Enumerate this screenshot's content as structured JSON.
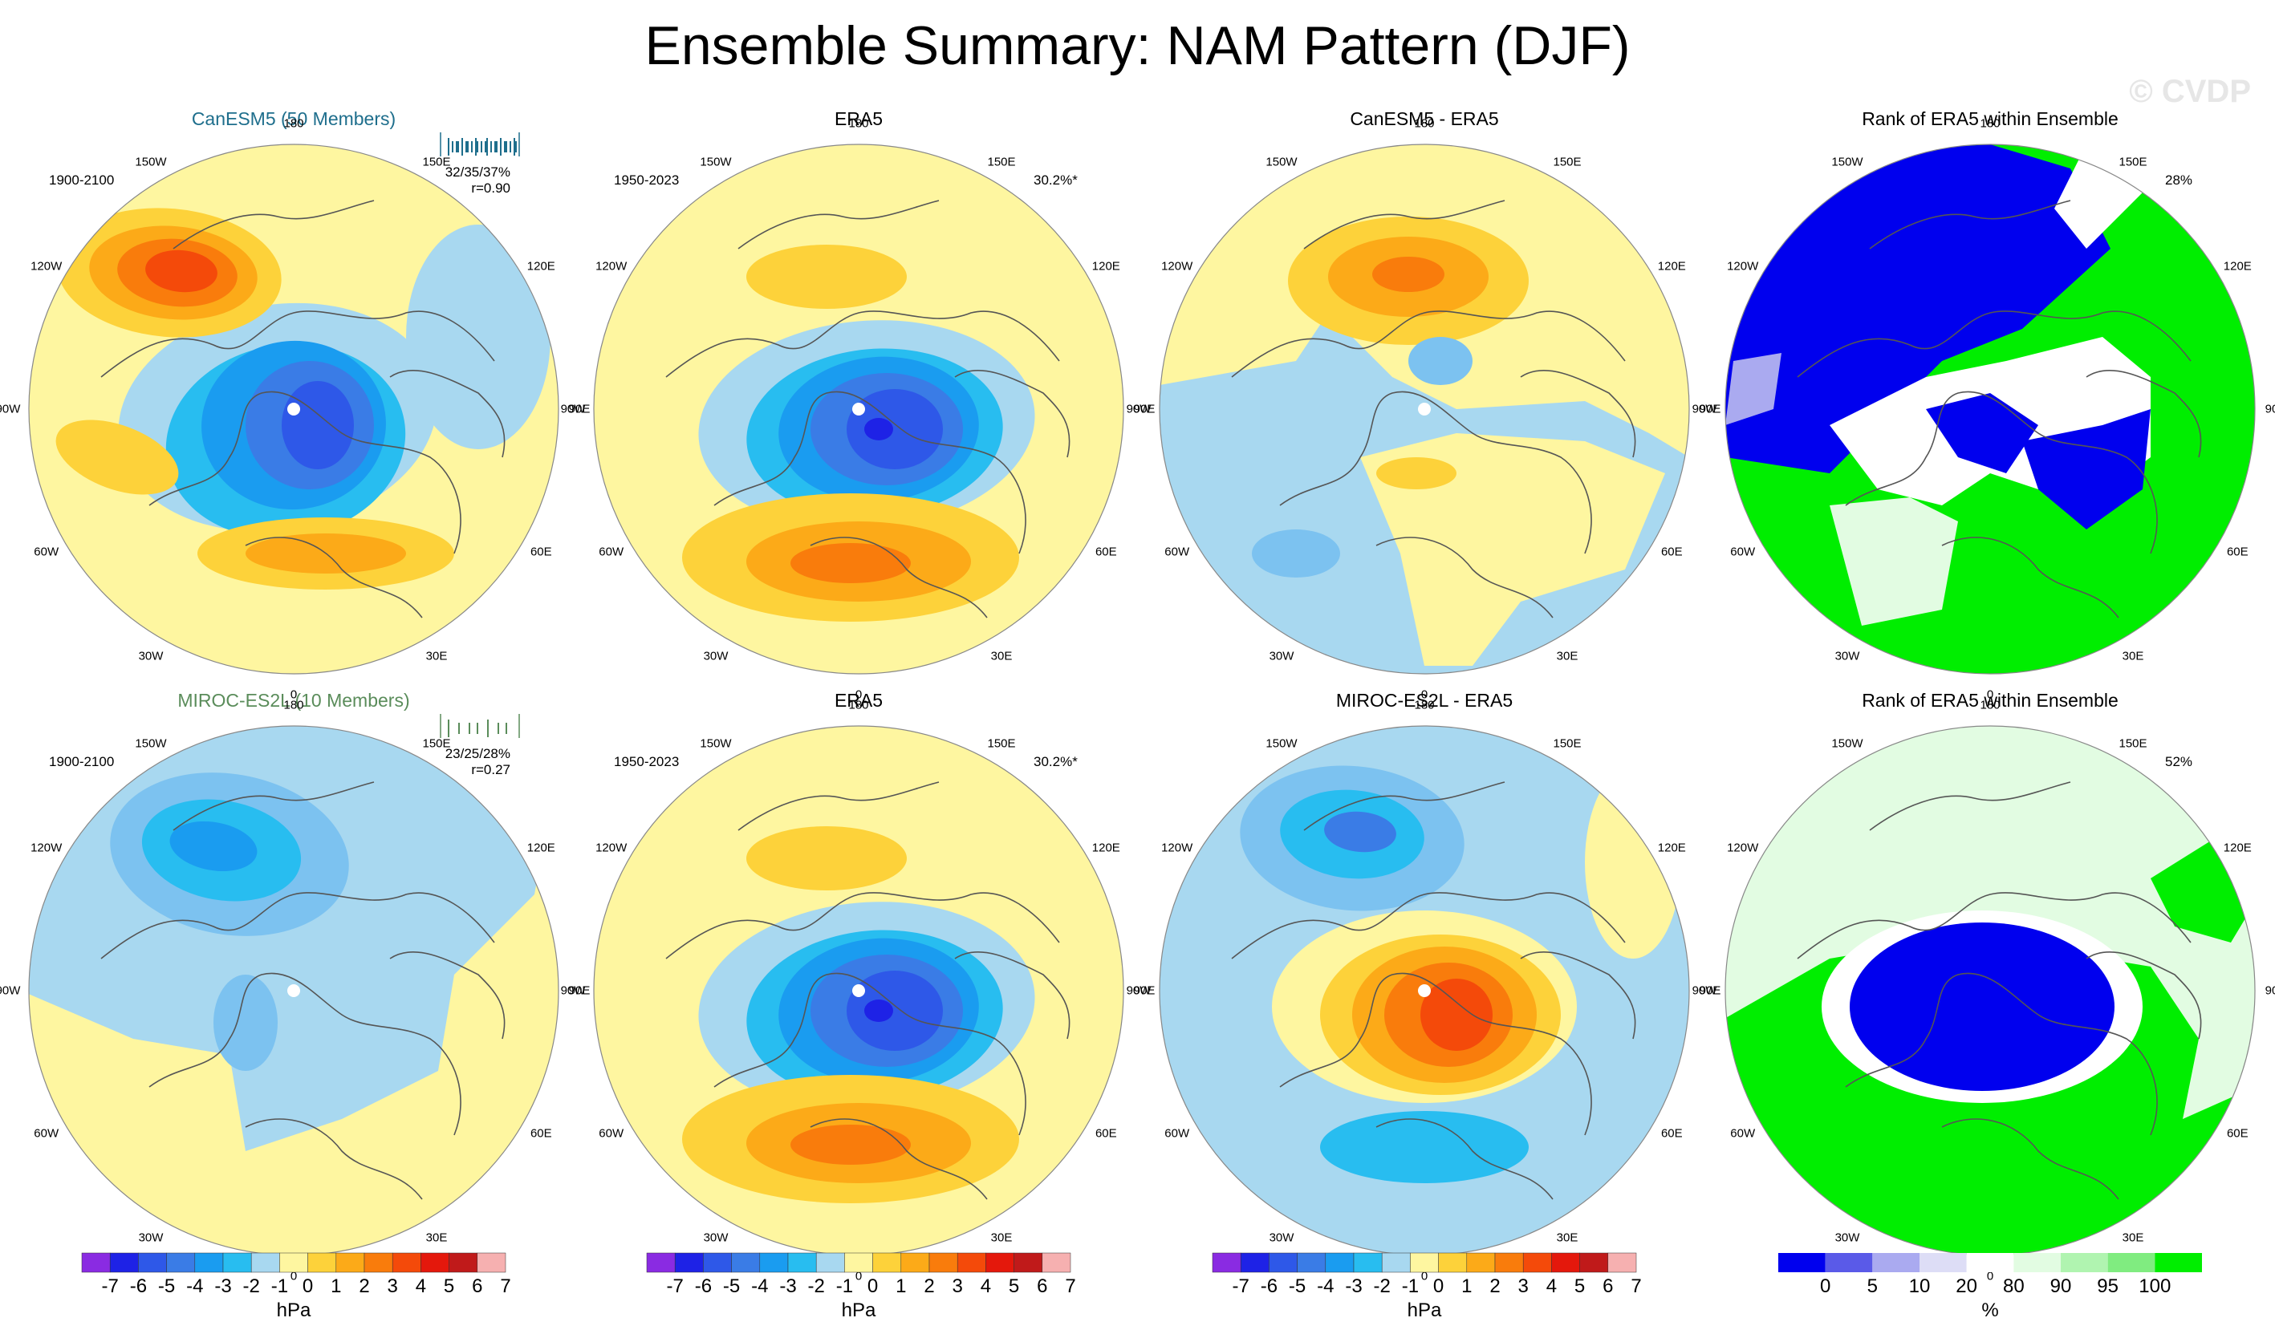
{
  "title": "Ensemble Summary: NAM Pattern (DJF)",
  "watermark": "© CVDP",
  "colors": {
    "model1": "#1e6e8c",
    "model2": "#5a8c5a",
    "diverging": [
      "#8a2be2",
      "#1e22e6",
      "#2e58e8",
      "#3a7ce6",
      "#1a9cf0",
      "#28bdf0",
      "#a8d8f0",
      "#fef6a0",
      "#fdd23a",
      "#fcaa18",
      "#f97c0c",
      "#f44a0a",
      "#e4180c",
      "#c01a1a",
      "#f6b0b0"
    ],
    "rank": [
      "#0000ee",
      "#5a5ae8",
      "#aaaaf0",
      "#ddddf6",
      "#ffffff",
      "#e2fce2",
      "#b0f4b0",
      "#80ec80",
      "#00ee00"
    ]
  },
  "colorbars": {
    "pressure": {
      "ticks": [
        "-7",
        "-6",
        "-5",
        "-4",
        "-3",
        "-2",
        "-1",
        "0",
        "1",
        "2",
        "3",
        "4",
        "5",
        "6",
        "7"
      ],
      "unit": "hPa"
    },
    "rank": {
      "ticks": [
        "0",
        "5",
        "10",
        "20",
        "80",
        "90",
        "95",
        "100"
      ],
      "unit": "%"
    }
  },
  "lon_labels": [
    "180",
    "150E",
    "120E",
    "90E",
    "60E",
    "30E",
    "0",
    "30W",
    "60W",
    "90W",
    "120W",
    "150W"
  ],
  "rows": [
    {
      "model": {
        "title": "CanESM5 (50 Members)",
        "period": "1900-2100",
        "stats_pct": "32/35/37%",
        "stats_r": "r=0.90"
      },
      "obs": {
        "title": "ERA5",
        "period": "1950-2023",
        "pct": "30.2%*"
      },
      "diff": {
        "title": "CanESM5 - ERA5"
      },
      "rank": {
        "title": "Rank of ERA5 within Ensemble",
        "pct": "28%"
      }
    },
    {
      "model": {
        "title": "MIROC-ES2L (10 Members)",
        "period": "1900-2100",
        "stats_pct": "23/25/28%",
        "stats_r": "r=0.27"
      },
      "obs": {
        "title": "ERA5",
        "period": "1950-2023",
        "pct": "30.2%*"
      },
      "diff": {
        "title": "MIROC-ES2L - ERA5"
      },
      "rank": {
        "title": "Rank of ERA5 within Ensemble",
        "pct": "52%"
      }
    }
  ],
  "chart_data": {
    "type": "heatmap",
    "projection": "north polar stereographic",
    "variable": "NAM pattern (sea level pressure regression)",
    "units": "hPa",
    "contour_levels": [
      -7,
      -6,
      -5,
      -4,
      -3,
      -2,
      -1,
      0,
      1,
      2,
      3,
      4,
      5,
      6,
      7
    ],
    "rank_levels_pct": [
      0,
      5,
      10,
      20,
      80,
      90,
      95,
      100
    ],
    "panels": [
      {
        "row": 1,
        "col": 1,
        "title": "CanESM5 (50 Members)",
        "period": "1900-2100",
        "pct_explained_min_mean_max": [
          32,
          35,
          37
        ],
        "pattern_corr": 0.9,
        "arctic_center_min": -5,
        "north_pacific_max": 5,
        "atlantic_max": 2
      },
      {
        "row": 1,
        "col": 2,
        "title": "ERA5",
        "period": "1950-2023",
        "pct_explained": 30.2,
        "arctic_center_min": -6,
        "north_pacific_max": 2,
        "atlantic_max": 3
      },
      {
        "row": 1,
        "col": 3,
        "title": "CanESM5 - ERA5",
        "arctic_center_min": -2,
        "north_pacific_max": 3
      },
      {
        "row": 1,
        "col": 4,
        "title": "Rank of ERA5 within Ensemble",
        "pct_area": 28
      },
      {
        "row": 2,
        "col": 1,
        "title": "MIROC-ES2L (10 Members)",
        "period": "1900-2100",
        "pct_explained_min_mean_max": [
          23,
          25,
          28
        ],
        "pattern_corr": 0.27,
        "north_pacific_min": -3
      },
      {
        "row": 2,
        "col": 2,
        "title": "ERA5",
        "period": "1950-2023",
        "pct_explained": 30.2,
        "arctic_center_min": -6,
        "north_pacific_max": 2,
        "atlantic_max": 3
      },
      {
        "row": 2,
        "col": 3,
        "title": "MIROC-ES2L - ERA5",
        "arctic_center_max": 5,
        "north_pacific_min": -4,
        "atlantic_min": -2
      },
      {
        "row": 2,
        "col": 4,
        "title": "Rank of ERA5 within Ensemble",
        "pct_area": 52
      }
    ]
  }
}
